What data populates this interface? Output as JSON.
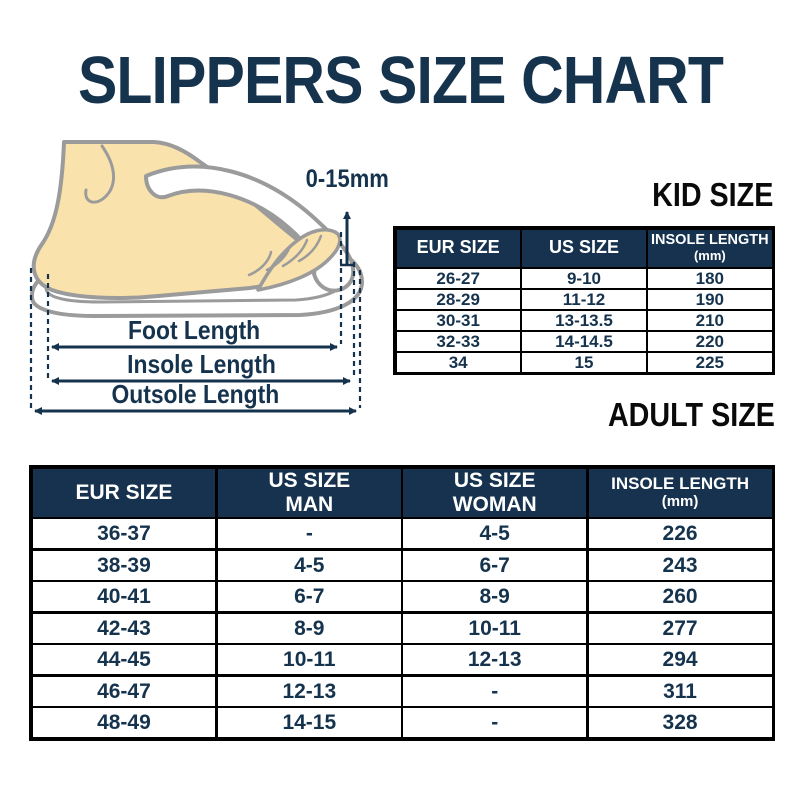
{
  "title": "SLIPPERS SIZE CHART",
  "colors": {
    "navy": "#16334e",
    "header_bg": "#16324e",
    "border_black": "#000000",
    "heading_black": "#0a0a0a",
    "skin": "#f9e2ab",
    "outline_gray": "#9b9b9b",
    "background": "#ffffff"
  },
  "diagram": {
    "gap_label": "0-15mm",
    "foot_length_label": "Foot Length",
    "insole_length_label": "Insole Length",
    "outsole_length_label": "Outsole Length"
  },
  "kid_table": {
    "heading": "KID SIZE",
    "columns": [
      "EUR SIZE",
      "US SIZE",
      "INSOLE LENGTH"
    ],
    "unit": "(mm)",
    "rows": [
      [
        "26-27",
        "9-10",
        "180"
      ],
      [
        "28-29",
        "11-12",
        "190"
      ],
      [
        "30-31",
        "13-13.5",
        "210"
      ],
      [
        "32-33",
        "14-14.5",
        "220"
      ],
      [
        "34",
        "15",
        "225"
      ]
    ]
  },
  "adult_table": {
    "heading": "ADULT SIZE",
    "columns": [
      "EUR SIZE",
      "US SIZE\nMAN",
      "US SIZE\nWOMAN",
      "INSOLE LENGTH"
    ],
    "unit": "(mm)",
    "rows": [
      [
        "36-37",
        "-",
        "4-5",
        "226"
      ],
      [
        "38-39",
        "4-5",
        "6-7",
        "243"
      ],
      [
        "40-41",
        "6-7",
        "8-9",
        "260"
      ],
      [
        "42-43",
        "8-9",
        "10-11",
        "277"
      ],
      [
        "44-45",
        "10-11",
        "12-13",
        "294"
      ],
      [
        "46-47",
        "12-13",
        "-",
        "311"
      ],
      [
        "48-49",
        "14-15",
        "-",
        "328"
      ]
    ]
  }
}
